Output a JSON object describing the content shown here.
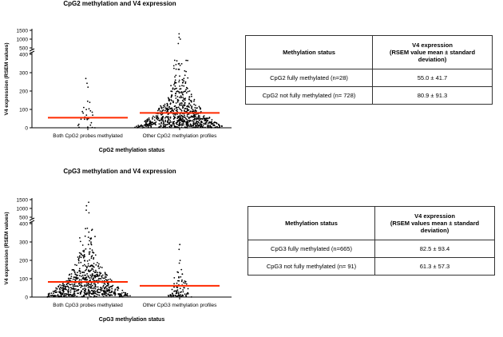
{
  "chart_data": [
    {
      "type": "scatter",
      "title": "CpG2 methylation and V4 expression",
      "xlabel": "CpG2 methylation status",
      "ylabel": "V4 expression (RSEM values)",
      "categories": [
        "Both CpG2 probes methylated",
        "Other CpG2 methylation profiles"
      ],
      "ylim_lower": [
        0,
        400
      ],
      "yticks_lower": [
        "0",
        "100",
        "200",
        "300",
        "400"
      ],
      "yticks_upper": [
        "500",
        "1000",
        "1500"
      ],
      "axis_break": true,
      "means": [
        55.0,
        80.9
      ],
      "mean_color": "#ff2a00",
      "point_color": "#000000",
      "n": [
        28,
        728
      ],
      "outliers": [
        [],
        [
          750,
          1000,
          1100,
          1300
        ]
      ]
    },
    {
      "type": "scatter",
      "title": "CpG3 methylation and V4 expression",
      "xlabel": "CpG3 methylation status",
      "ylabel": "V4 expression (RSEM values)",
      "categories": [
        "Both CpG3 probes methylated",
        "Other CpG3 methylation profiles"
      ],
      "ylim_lower": [
        0,
        400
      ],
      "yticks_lower": [
        "0",
        "100",
        "200",
        "300",
        "400"
      ],
      "yticks_upper": [
        "500",
        "1000",
        "1500"
      ],
      "axis_break": true,
      "means": [
        82.5,
        61.3
      ],
      "mean_color": "#ff2a00",
      "point_color": "#000000",
      "n": [
        665,
        91
      ],
      "outliers": [
        [
          750,
          900,
          1150,
          1350
        ],
        []
      ]
    }
  ],
  "tables": [
    {
      "header_status": "Methylation status",
      "header_expr": "V4 expression\n(RSEM value mean  ± standard deviation)",
      "rows": [
        {
          "status": "CpG2 fully methylated (n=28)",
          "value": "55.0 ± 41.7"
        },
        {
          "status": "CpG2 not fully methylated (n= 728)",
          "value": "80.9 ± 91.3"
        }
      ]
    },
    {
      "header_status": "Methylation status",
      "header_expr": "V4 expression\n(RSEM values mean  ± standard deviation)",
      "rows": [
        {
          "status": "CpG3 fully methylated (n=665)",
          "value": "82.5 ± 93.4"
        },
        {
          "status": "CpG3 not fully methylated (n= 91)",
          "value": "61.3 ± 57.3"
        }
      ]
    }
  ]
}
